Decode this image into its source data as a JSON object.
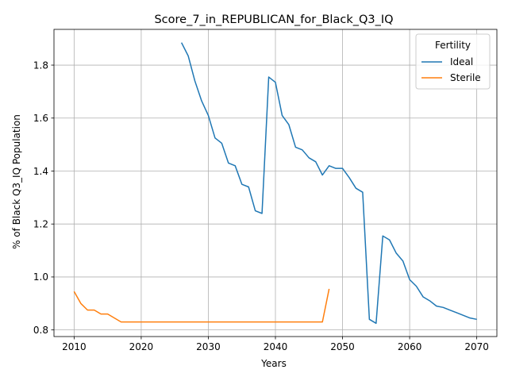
{
  "chart_data": {
    "type": "line",
    "title": "Score_7_in_REPUBLICAN_for_Black_Q3_IQ",
    "xlabel": "Years",
    "ylabel": "% of Black Q3_IQ Population",
    "xlim": [
      2007,
      2073
    ],
    "ylim": [
      0.775,
      1.935
    ],
    "xticks": [
      2010,
      2020,
      2030,
      2040,
      2050,
      2060,
      2070
    ],
    "yticks": [
      0.8,
      1.0,
      1.2,
      1.4,
      1.6,
      1.8
    ],
    "grid": true,
    "legend": {
      "title": "Fertility",
      "position": "top-right"
    },
    "series": [
      {
        "name": "Ideal",
        "color": "#1f77b4",
        "x": [
          2026,
          2027,
          2028,
          2029,
          2030,
          2031,
          2032,
          2033,
          2034,
          2035,
          2036,
          2037,
          2038,
          2039,
          2040,
          2041,
          2042,
          2043,
          2044,
          2045,
          2046,
          2047,
          2048,
          2049,
          2050,
          2051,
          2052,
          2053,
          2054,
          2055,
          2056,
          2057,
          2058,
          2059,
          2060,
          2061,
          2062,
          2063,
          2064,
          2065,
          2066,
          2067,
          2068,
          2069,
          2070
        ],
        "y": [
          1.885,
          1.835,
          1.74,
          1.665,
          1.61,
          1.525,
          1.505,
          1.43,
          1.42,
          1.35,
          1.34,
          1.25,
          1.24,
          1.755,
          1.735,
          1.61,
          1.575,
          1.49,
          1.48,
          1.45,
          1.435,
          1.385,
          1.42,
          1.41,
          1.41,
          1.375,
          1.335,
          1.32,
          0.84,
          0.825,
          1.155,
          1.14,
          1.09,
          1.06,
          0.99,
          0.965,
          0.925,
          0.91,
          0.89,
          0.885,
          0.875,
          0.865,
          0.855,
          0.845,
          0.84
        ]
      },
      {
        "name": "Sterile",
        "color": "#ff7f0e",
        "x": [
          2010,
          2011,
          2012,
          2013,
          2014,
          2015,
          2016,
          2017,
          2018,
          2019,
          2020,
          2021,
          2022,
          2023,
          2024,
          2025,
          2026,
          2027,
          2028,
          2029,
          2030,
          2031,
          2032,
          2033,
          2034,
          2035,
          2036,
          2037,
          2038,
          2039,
          2040,
          2041,
          2042,
          2043,
          2044,
          2045,
          2046,
          2047,
          2048
        ],
        "y": [
          0.945,
          0.9,
          0.875,
          0.875,
          0.86,
          0.86,
          0.845,
          0.83,
          0.83,
          0.83,
          0.83,
          0.83,
          0.83,
          0.83,
          0.83,
          0.83,
          0.83,
          0.83,
          0.83,
          0.83,
          0.83,
          0.83,
          0.83,
          0.83,
          0.83,
          0.83,
          0.83,
          0.83,
          0.83,
          0.83,
          0.83,
          0.83,
          0.83,
          0.83,
          0.83,
          0.83,
          0.83,
          0.83,
          0.955
        ]
      }
    ]
  }
}
